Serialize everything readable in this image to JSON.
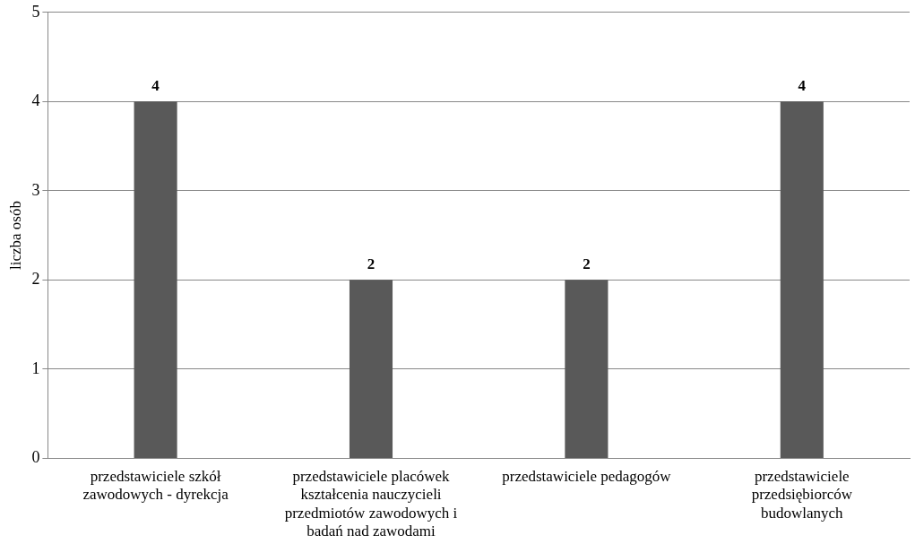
{
  "chart_data": {
    "type": "bar",
    "ylabel": "liczba osób",
    "categories": [
      "przedstawiciele szkół zawodowych - dyrekcja",
      "przedstawiciele placówek kształcenia nauczycieli przedmiotów zawodowych i badań nad zawodami",
      "przedstawiciele pedagogów",
      "przedstawiciele przedsiębiorców budowlanych"
    ],
    "values": [
      4,
      2,
      2,
      4
    ],
    "color": "#595959",
    "ylim": [
      0,
      5
    ],
    "yticks": [
      0,
      1,
      2,
      3,
      4,
      5
    ],
    "grid": "y",
    "legend": false,
    "data_labels": true
  }
}
